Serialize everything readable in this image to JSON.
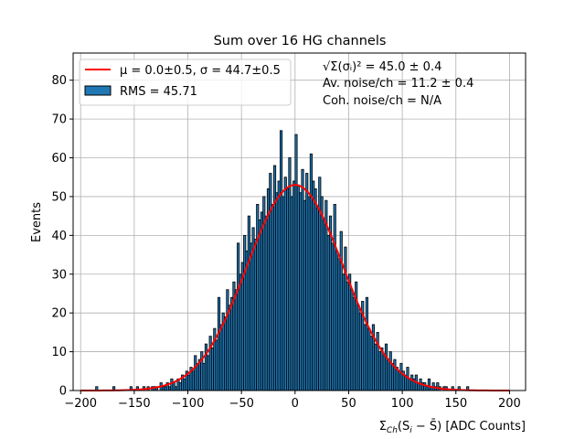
{
  "chart_data": {
    "type": "bar",
    "title": "Sum over 16 HG channels",
    "xlabel": "Σ_Ch(S_i − S̄) [ADC Counts]",
    "xlabel_parts": {
      "sigma": "Σ",
      "sub": "Ch",
      "rest": "(S",
      "sub2": "i",
      "end": " − S̄) [ADC Counts]"
    },
    "ylabel": "Events",
    "xlim": [
      -207,
      215
    ],
    "ylim": [
      0,
      87
    ],
    "xticks": [
      -200,
      -150,
      -100,
      -50,
      0,
      50,
      100,
      150,
      200
    ],
    "yticks": [
      0,
      10,
      20,
      30,
      40,
      50,
      60,
      70,
      80
    ],
    "grid": true,
    "bar_color": "#1f77b4",
    "bar_edge_color": "#000000",
    "fit_color": "#ff0000",
    "bin_start": -200,
    "bin_width": 2,
    "values": [
      0,
      0,
      0,
      0,
      0,
      0,
      0,
      1,
      0,
      0,
      0,
      0,
      0,
      0,
      0,
      1,
      0,
      0,
      0,
      0,
      0,
      0,
      0,
      1,
      0,
      0,
      1,
      0,
      0,
      1,
      0,
      1,
      0,
      1,
      1,
      1,
      0,
      2,
      1,
      1,
      2,
      1,
      3,
      2,
      1,
      3,
      2,
      4,
      3,
      5,
      4,
      6,
      5,
      9,
      7,
      8,
      10,
      7,
      12,
      9,
      14,
      11,
      16,
      13,
      24,
      17,
      20,
      19,
      26,
      22,
      24,
      28,
      26,
      38,
      30,
      33,
      40,
      36,
      45,
      38,
      42,
      39,
      48,
      44,
      46,
      50,
      45,
      52,
      56,
      48,
      58,
      51,
      54,
      67,
      50,
      55,
      52,
      60,
      50,
      54,
      66,
      53,
      51,
      57,
      49,
      56,
      50,
      61,
      54,
      52,
      47,
      55,
      50,
      44,
      49,
      40,
      45,
      38,
      48,
      36,
      34,
      41,
      30,
      37,
      28,
      30,
      26,
      24,
      28,
      22,
      20,
      23,
      17,
      24,
      16,
      14,
      17,
      12,
      15,
      10,
      11,
      9,
      12,
      8,
      10,
      7,
      8,
      6,
      5,
      7,
      5,
      4,
      6,
      3,
      4,
      3,
      4,
      2,
      3,
      2,
      2,
      1,
      3,
      1,
      2,
      1,
      2,
      1,
      0,
      1,
      1,
      0,
      0,
      1,
      0,
      0,
      1,
      0,
      0,
      0,
      1,
      0,
      0,
      0,
      0,
      0,
      0,
      0,
      0,
      0,
      0,
      0,
      0,
      0,
      0,
      0,
      0,
      0,
      0,
      0
    ],
    "fit": {
      "mu": 0.0,
      "sigma": 44.7,
      "amplitude": 53,
      "x_range": [
        -200,
        200
      ]
    },
    "legend": {
      "placement": "top-left",
      "entries": [
        {
          "label": "μ = 0.0±0.5, σ = 44.7±0.5",
          "type": "line"
        },
        {
          "label": "RMS = 45.71",
          "type": "patch"
        }
      ]
    },
    "annotations": [
      "√Σ(σᵢ)² = 45.0 ± 0.4",
      "Av. noise/ch  = 11.2 ± 0.4",
      "Coh. noise/ch = N/A"
    ]
  }
}
